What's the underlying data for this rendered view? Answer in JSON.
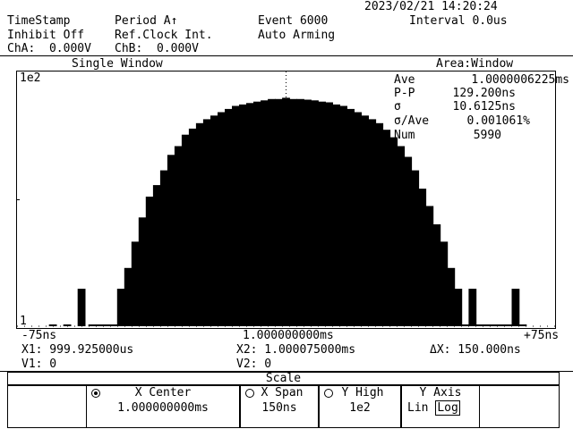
{
  "header": {
    "datetime": "2023/02/21 14:20:24",
    "timestamp": "TimeStamp",
    "period": "Period A↑",
    "event": "Event 6000",
    "interval": "Interval 0.0us",
    "inhibit": "Inhibit Off",
    "ref_clock": "Ref.Clock Int.",
    "arming": "Auto Arming",
    "cha": "ChA:  0.000V",
    "chb": "ChB:  0.000V"
  },
  "window": {
    "title": "Single Window",
    "area": "Area:Window"
  },
  "plot": {
    "y_top_label": "1e2",
    "y_bottom_label": "1",
    "x_left_label": "-75ns",
    "x_center_label": "1.000000000ms",
    "x_right_label": "+75ns"
  },
  "stats": [
    {
      "label": "Ave",
      "value": "1.0000006225ms"
    },
    {
      "label": "P-P",
      "value": "129.200ns"
    },
    {
      "label": "σ",
      "value": "10.6125ns"
    },
    {
      "label": "σ/Ave",
      "value": "0.001061%"
    },
    {
      "label": "Num",
      "value": "5990"
    }
  ],
  "cursors": {
    "x1": "X1: 999.925000us",
    "x2": "X2: 1.000075000ms",
    "dx": "ΔX: 150.000ns",
    "v1": "V1: 0",
    "v2": "V2: 0"
  },
  "menu": {
    "title": "Scale",
    "softkeys": [
      {
        "label": "X Center",
        "value": "1.000000000ms",
        "icon": "radio-selected-icon"
      },
      {
        "label": "X Span",
        "value": "150ns",
        "icon": "radio-icon"
      },
      {
        "label": "Y High",
        "value": "1e2",
        "icon": "radio-icon"
      },
      {
        "label": "Y Axis",
        "option_lin": "Lin",
        "option_log": "Log"
      }
    ]
  },
  "chart_data": {
    "type": "bar",
    "x_unit": "ns offset from center",
    "xlim": [
      -75,
      75
    ],
    "y_scale": "log",
    "ylim": [
      1,
      100
    ],
    "grid": false,
    "bins_x": [
      -65,
      -61,
      -57,
      -54,
      -52,
      -50,
      -48,
      -46,
      -44,
      -42,
      -40,
      -38,
      -36,
      -34,
      -32,
      -30,
      -28,
      -26,
      -24,
      -22,
      -20,
      -18,
      -16,
      -14,
      -12,
      -10,
      -8,
      -6,
      -4,
      -2,
      0,
      2,
      4,
      6,
      8,
      10,
      12,
      14,
      16,
      18,
      20,
      22,
      24,
      26,
      28,
      30,
      32,
      34,
      36,
      38,
      40,
      42,
      44,
      46,
      48,
      50,
      52,
      54,
      56,
      58,
      60,
      62,
      64,
      66
    ],
    "bins_y": [
      1,
      1,
      2,
      1,
      1,
      1,
      1,
      2,
      3,
      5,
      8,
      12,
      15,
      20,
      27,
      32,
      40,
      45,
      50,
      54,
      58,
      62,
      66,
      70,
      72,
      74,
      76,
      78,
      80,
      80,
      82,
      80,
      80,
      79,
      78,
      76,
      75,
      72,
      70,
      66,
      62,
      58,
      54,
      50,
      44,
      38,
      32,
      26,
      20,
      14,
      10,
      7,
      5,
      3,
      2,
      1,
      2,
      1,
      1,
      1,
      1,
      1,
      2,
      1
    ]
  }
}
